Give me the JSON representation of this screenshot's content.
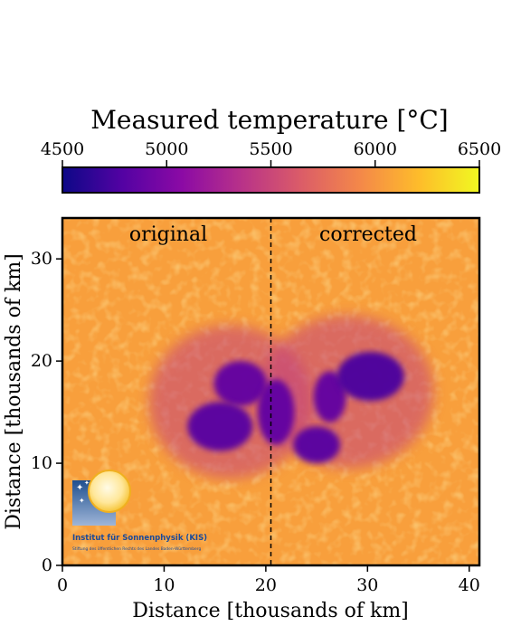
{
  "chart_data": {
    "type": "heatmap",
    "title": "Measured temperature [°C]",
    "colorbar": {
      "label": "Measured temperature [°C]",
      "range": [
        4500,
        6500
      ],
      "ticks": [
        4500,
        5000,
        5500,
        6000,
        6500
      ],
      "colormap": "plasma",
      "colors": [
        "#0d0887",
        "#5302a3",
        "#8b0aa5",
        "#b83289",
        "#db5c68",
        "#f48849",
        "#febd2a",
        "#f0f921"
      ]
    },
    "xlabel": "Distance [thousands of km]",
    "ylabel": "Distance [thousands of km]",
    "xlim": [
      0,
      41
    ],
    "ylim": [
      0,
      34
    ],
    "xticks": [
      0,
      10,
      20,
      30,
      40
    ],
    "yticks": [
      0,
      10,
      20,
      30
    ],
    "divider_x": 20.5,
    "panels": [
      {
        "label": "original"
      },
      {
        "label": "corrected"
      }
    ],
    "background_temperature": 6050,
    "umbra_temperature": 4750,
    "features": [
      {
        "name": "left-umbra-upper",
        "x": 17.5,
        "y": 17.8,
        "rx": 2.6,
        "ry": 2.2,
        "temp": 4850
      },
      {
        "name": "left-umbra-lower",
        "x": 15.5,
        "y": 13.6,
        "rx": 3.2,
        "ry": 2.4,
        "temp": 4800
      },
      {
        "name": "center-umbra-left",
        "x": 21.0,
        "y": 15.0,
        "rx": 1.8,
        "ry": 3.2,
        "temp": 4850
      },
      {
        "name": "center-umbra-bottom",
        "x": 25.0,
        "y": 11.8,
        "rx": 2.3,
        "ry": 1.8,
        "temp": 4800
      },
      {
        "name": "right-umbra-stem",
        "x": 26.3,
        "y": 16.5,
        "rx": 1.6,
        "ry": 2.5,
        "temp": 4850
      },
      {
        "name": "right-umbra-main",
        "x": 30.3,
        "y": 18.5,
        "rx": 3.3,
        "ry": 2.4,
        "temp": 4750
      },
      {
        "name": "penumbra-left",
        "x": 16.5,
        "y": 16.0,
        "rx": 8.0,
        "ry": 7.5,
        "temp": 5450
      },
      {
        "name": "penumbra-right",
        "x": 28.0,
        "y": 17.0,
        "rx": 8.5,
        "ry": 7.5,
        "temp": 5450
      }
    ]
  },
  "logo": {
    "title": "Institut für Sonnenphysik (KIS)",
    "subtitle": "Stiftung des öffentlichen Rechts des Landes Baden-Württemberg"
  }
}
